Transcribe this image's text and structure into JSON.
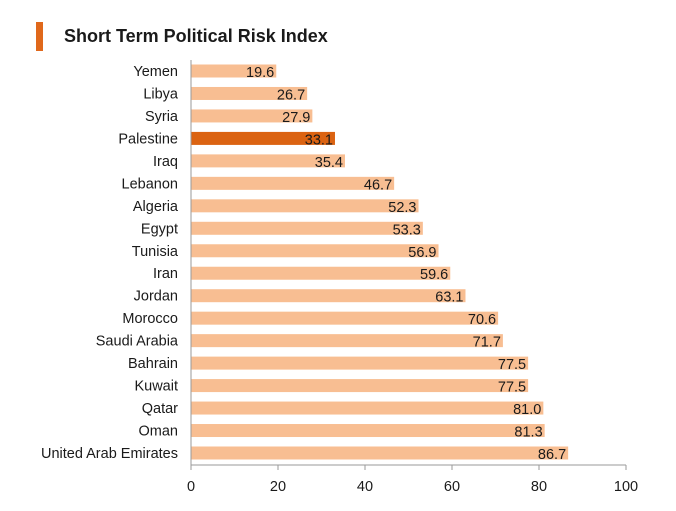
{
  "colors": {
    "accent": "#E0681B",
    "bar": "#F8BE92",
    "highlight": "#DB6312",
    "axis": "#9a9a9a",
    "text": "#1a1a1a"
  },
  "chart_data": {
    "type": "bar",
    "orientation": "horizontal",
    "title": "Short Term Political Risk Index",
    "xlabel": "",
    "ylabel": "",
    "xlim": [
      0,
      100
    ],
    "xticks": [
      0,
      20,
      40,
      60,
      80,
      100
    ],
    "grid": false,
    "highlight": "Palestine",
    "categories": [
      "Yemen",
      "Libya",
      "Syria",
      "Palestine",
      "Iraq",
      "Lebanon",
      "Algeria",
      "Egypt",
      "Tunisia",
      "Iran",
      "Jordan",
      "Morocco",
      "Saudi Arabia",
      "Bahrain",
      "Kuwait",
      "Qatar",
      "Oman",
      "United Arab Emirates"
    ],
    "values": [
      19.6,
      26.7,
      27.9,
      33.1,
      35.4,
      46.7,
      52.3,
      53.3,
      56.9,
      59.6,
      63.1,
      70.6,
      71.7,
      77.5,
      77.5,
      81.0,
      81.3,
      86.7
    ],
    "labels": [
      "19.6",
      "26.7",
      "27.9",
      "33.1",
      "35.4",
      "46.7",
      "52.3",
      "53.3",
      "56.9",
      "59.6",
      "63.1",
      "70.6",
      "71.7",
      "77.5",
      "77.5",
      "81.0",
      "81.3",
      "86.7"
    ]
  }
}
